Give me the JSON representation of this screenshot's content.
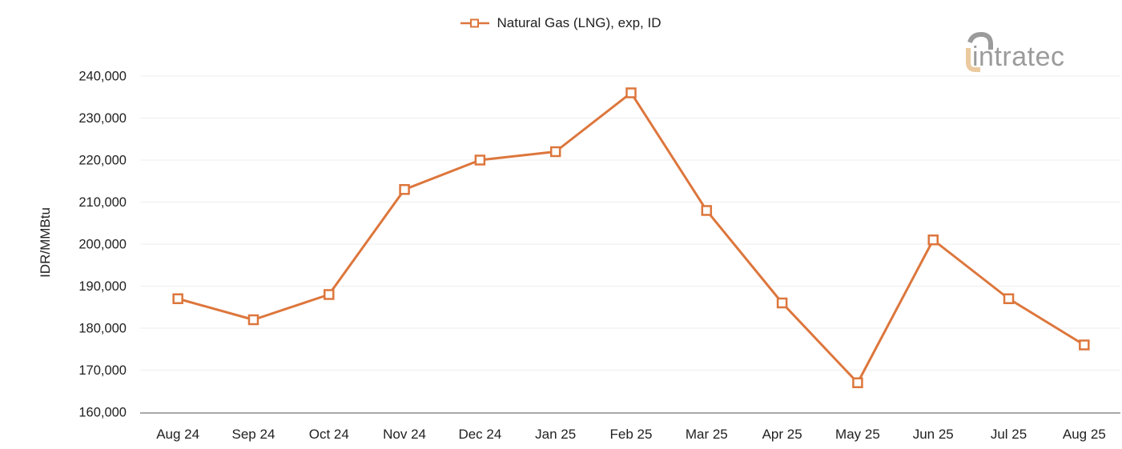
{
  "legend": {
    "label": "Natural Gas (LNG), exp, ID"
  },
  "logo": {
    "text": "intratec"
  },
  "y_axis_title": "IDR/MMBtu",
  "chart_data": {
    "type": "line",
    "title": "",
    "xlabel": "",
    "ylabel": "IDR/MMBtu",
    "categories": [
      "Aug 24",
      "Sep 24",
      "Oct 24",
      "Nov 24",
      "Dec 24",
      "Jan 25",
      "Feb 25",
      "Mar 25",
      "Apr 25",
      "May 25",
      "Jun 25",
      "Jul 25",
      "Aug 25"
    ],
    "series": [
      {
        "name": "Natural Gas (LNG), exp, ID",
        "values": [
          187000,
          182000,
          188000,
          213000,
          220000,
          222000,
          236000,
          208000,
          186000,
          167000,
          201000,
          187000,
          176000
        ]
      }
    ],
    "ylim": [
      160000,
      240000
    ],
    "ytick_step": 10000,
    "grid": true,
    "legend_position": "top-center",
    "marker": "square"
  },
  "colors": {
    "line": "#DD763C",
    "marker_fill": "#FFFFFF",
    "grid": "#EEEEEE",
    "axis": "#8C8C8C",
    "text": "#212121",
    "logo_gray": "#9B9B9B",
    "logo_tan": "#EBCA9F"
  }
}
